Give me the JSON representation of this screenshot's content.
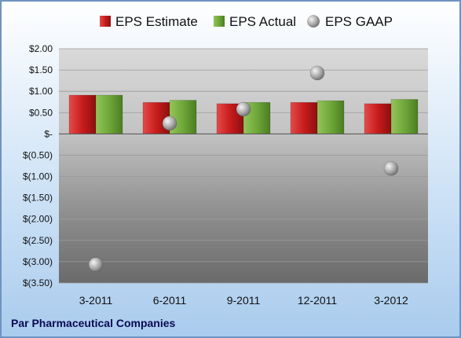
{
  "company_label": "Par Pharmaceutical Companies",
  "chart_data": {
    "type": "bar",
    "categories": [
      "3-2011",
      "6-2011",
      "9-2011",
      "12-2011",
      "3-2012"
    ],
    "series": [
      {
        "name": "EPS Estimate",
        "kind": "bar",
        "color": "#cc1f1f",
        "values": [
          0.91,
          0.74,
          0.71,
          0.74,
          0.71
        ]
      },
      {
        "name": "EPS Actual",
        "kind": "bar",
        "color": "#6fa83a",
        "values": [
          0.91,
          0.79,
          0.74,
          0.78,
          0.81
        ]
      },
      {
        "name": "EPS GAAP",
        "kind": "scatter",
        "color": "#a8a8a8",
        "values": [
          -3.07,
          0.25,
          0.58,
          1.43,
          -0.81
        ]
      }
    ],
    "y_ticks": [
      "$2.00",
      "$1.50",
      "$1.00",
      "$0.50",
      "$-",
      "$(0.50)",
      "$(1.00)",
      "$(1.50)",
      "$(2.00)",
      "$(2.50)",
      "$(3.00)",
      "$(3.50)"
    ],
    "ylim": [
      -3.5,
      2.0
    ],
    "legend_position": "top",
    "grid": true
  }
}
